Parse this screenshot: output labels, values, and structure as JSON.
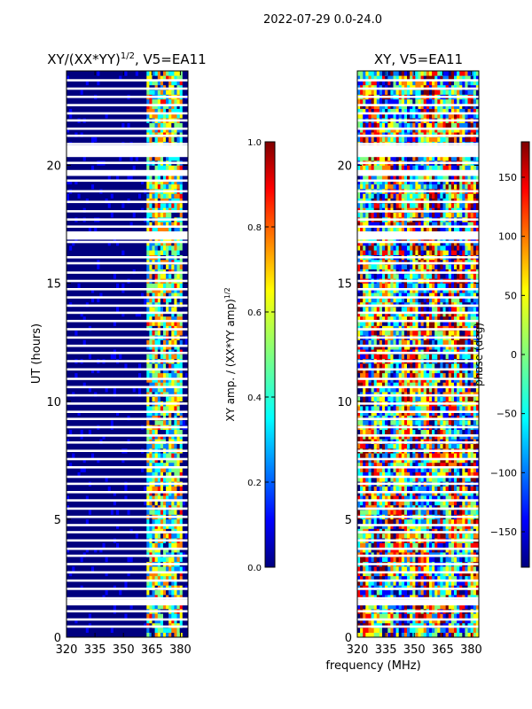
{
  "suptitle": "2022-07-29 0.0-24.0",
  "colors": {
    "jet": [
      "#00007f",
      "#0000ff",
      "#007fff",
      "#00ffff",
      "#7fff7f",
      "#ffff00",
      "#ff7f00",
      "#ff0000",
      "#7f0000"
    ],
    "background": "#ffffff",
    "axis": "#000000"
  },
  "shared_xlabel": "frequency (MHz)",
  "chart_data": [
    {
      "type": "heatmap",
      "title_main": "XY/(XX*YY)",
      "title_sup": "1/2",
      "title_tail": ", V5=EA11",
      "xlabel": "",
      "ylabel": "UT (hours)",
      "xlim": [
        320,
        384
      ],
      "ylim": [
        0,
        24
      ],
      "xticks": [
        320,
        335,
        350,
        365,
        380
      ],
      "yticks": [
        0,
        5,
        10,
        15,
        20
      ],
      "signal_band_mhz": [
        361,
        382
      ],
      "colorbar": {
        "label_main": "XY amp. / (XX*YY amp)",
        "label_sup": "1/2",
        "range": [
          0.0,
          1.0
        ],
        "ticks": [
          "0.0",
          "0.2",
          "0.4",
          "0.6",
          "0.8",
          "1.0"
        ],
        "tick_values": [
          0.0,
          0.2,
          0.4,
          0.6,
          0.8,
          1.0
        ]
      }
    },
    {
      "type": "heatmap",
      "title_main": "XY, V5=EA11",
      "xlabel": "",
      "ylabel": "",
      "xlim": [
        320,
        384
      ],
      "ylim": [
        0,
        24
      ],
      "xticks": [
        320,
        335,
        350,
        365,
        380
      ],
      "yticks": [
        0,
        5,
        10,
        15,
        20
      ],
      "colorbar": {
        "label_main": "phase (deg)",
        "range": [
          -180,
          180
        ],
        "ticks": [
          "150",
          "100",
          "50",
          "0",
          "−50",
          "−100",
          "−150"
        ],
        "tick_values": [
          150,
          100,
          50,
          0,
          -50,
          -100,
          -150
        ]
      }
    }
  ],
  "flagged_hours": [
    23.6,
    23.25,
    22.9,
    22.55,
    22.2,
    21.9,
    21.55,
    21.25,
    20.9,
    20.45,
    20.1,
    19.7,
    19.35,
    18.9,
    18.45,
    18.05,
    17.7,
    17.4,
    17.05,
    16.75,
    16.1,
    15.85,
    15.45,
    15.1,
    14.75,
    14.4,
    14.05,
    13.75,
    13.4,
    13.05,
    12.7,
    12.35,
    12.05,
    11.7,
    11.35,
    10.95,
    10.6,
    10.25,
    9.9,
    9.55,
    9.25,
    8.9,
    8.55,
    8.25,
    7.9,
    7.55,
    7.2,
    6.8,
    6.5,
    6.15,
    5.8,
    5.45,
    5.1,
    4.75,
    4.45,
    4.1,
    3.75,
    3.45,
    3.1,
    2.75,
    2.4,
    2.05,
    1.65,
    1.4,
    1.1,
    0.75,
    0.45
  ]
}
